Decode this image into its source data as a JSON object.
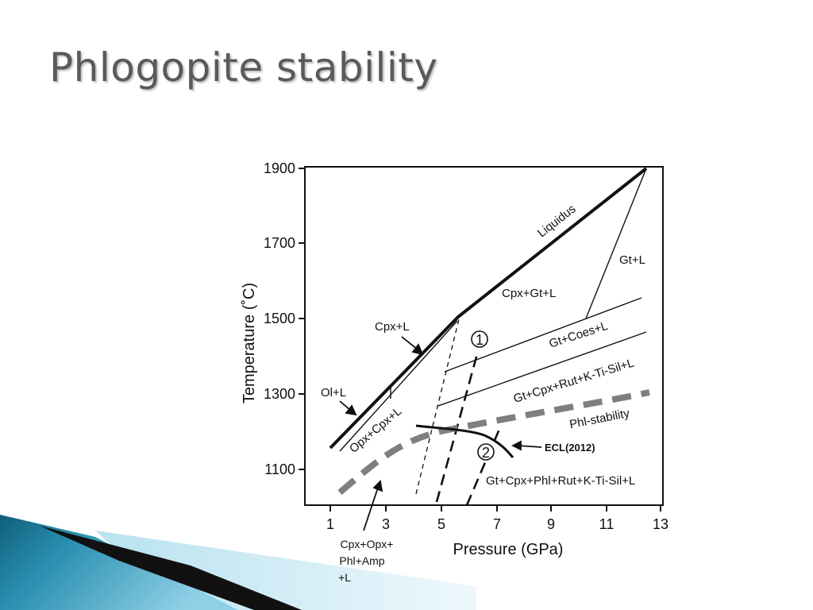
{
  "slide": {
    "title": "Phlogopite stability"
  },
  "diagram": {
    "xlabel": "Pressure (GPa)",
    "ylabel": "Temperature (˚C)",
    "x_ticks": [
      "1",
      "3",
      "5",
      "7",
      "9",
      "11",
      "13"
    ],
    "y_ticks": [
      "1900",
      "1700",
      "1500",
      "1300",
      "1100"
    ],
    "curve_labels": {
      "liquidus": "Liquidus",
      "gt_l": "Gt+L",
      "cpx_gt_l": "Cpx+Gt+L",
      "cpx_l": "Cpx+L",
      "ol_l": "Ol+L",
      "opx_cpx_l": "Opx+Cpx+L",
      "gt_coes_l": "Gt+Coes+L",
      "gt_cpx_rut": "Gt+Cpx+Rut+K-Ti-Sil+L",
      "phl_stability": "Phl-stability",
      "ecl": "ECL(2012)",
      "gt_cpx_phl": "Gt+Cpx+Phl+Rut+K-Ti-Sil+L",
      "cpx_opx_phl": [
        "Cpx+Opx+",
        "Phl+Amp",
        "+L"
      ],
      "marker1": "1",
      "marker2": "2"
    },
    "colors": {
      "phl_stability_line": "#7f7f7f",
      "lines": "#111111"
    }
  },
  "decoration": {
    "colors": {
      "teal_dark": "#0f5f7a",
      "teal_mid": "#2a8fb0",
      "teal_light": "#8fd0e6",
      "black_band": "#111111"
    }
  }
}
